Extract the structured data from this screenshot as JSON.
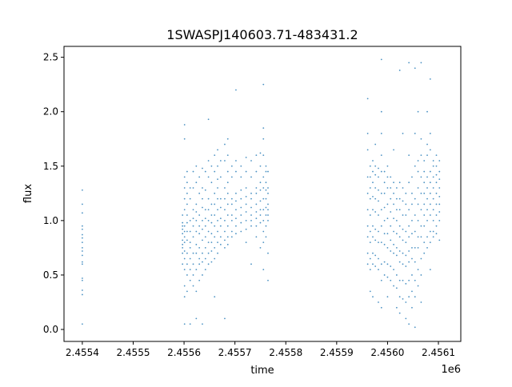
{
  "chart_data": {
    "type": "scatter",
    "title": "1SWASPJ140603.71-483431.2",
    "xlabel": "time",
    "ylabel": "flux",
    "x_offset_label": "1e6",
    "xlim": [
      2455364,
      2456144
    ],
    "ylim": [
      -0.11,
      2.6
    ],
    "xticks": [
      2455400,
      2455500,
      2455600,
      2455700,
      2455800,
      2455900,
      2456000,
      2456100
    ],
    "xtick_labels": [
      "2.4554",
      "2.4555",
      "2.4556",
      "2.4557",
      "2.4558",
      "2.4559",
      "2.4560",
      "2.4561"
    ],
    "yticks": [
      0.0,
      0.5,
      1.0,
      1.5,
      2.0,
      2.5
    ],
    "ytick_labels": [
      "0.0",
      "0.5",
      "1.0",
      "1.5",
      "2.0",
      "2.5"
    ],
    "grid": false,
    "marker_color": "#1f77b4",
    "nights": [
      {
        "t": 2455400,
        "flux": [
          1.28,
          1.15,
          1.07,
          0.95,
          0.92,
          0.87,
          0.84,
          0.8,
          0.75,
          0.72,
          0.68,
          0.62,
          0.6,
          0.47,
          0.45,
          0.36,
          0.32,
          0.05
        ]
      },
      {
        "t": 2455597,
        "flux": [
          0.82,
          0.95,
          0.7,
          1.05,
          0.78,
          0.88,
          0.6,
          0.92,
          0.75,
          0.98
        ]
      },
      {
        "t": 2455601,
        "flux": [
          0.85,
          1.2,
          0.65,
          1.4,
          0.55,
          0.95,
          1.75,
          0.4,
          1.1,
          0.8,
          0.3,
          1.88,
          0.72,
          1.3,
          0.05,
          0.9
        ]
      },
      {
        "t": 2455606,
        "flux": [
          0.9,
          1.25,
          0.7,
          1.45,
          0.6,
          1.05,
          0.5,
          0.82,
          1.15,
          0.35,
          0.98,
          1.35
        ]
      },
      {
        "t": 2455612,
        "flux": [
          0.8,
          1.0,
          0.65,
          1.2,
          0.55,
          0.9,
          0.45,
          1.3,
          0.75,
          0.05
        ]
      },
      {
        "t": 2455618,
        "flux": [
          0.85,
          1.1,
          0.6,
          1.3,
          0.5,
          0.95,
          0.7,
          1.45,
          0.4,
          1.02
        ]
      },
      {
        "t": 2455624,
        "flux": [
          0.9,
          1.15,
          0.7,
          1.35,
          0.55,
          1.0,
          0.78,
          1.5,
          0.35,
          0.1,
          1.08
        ]
      },
      {
        "t": 2455630,
        "flux": [
          0.88,
          1.05,
          0.65,
          1.25,
          0.6,
          0.95,
          0.75,
          1.4,
          0.45
        ]
      },
      {
        "t": 2455636,
        "flux": [
          0.92,
          1.12,
          0.7,
          1.3,
          0.62,
          1.0,
          0.82,
          1.48,
          0.5,
          1.2,
          0.05
        ]
      },
      {
        "t": 2455642,
        "flux": [
          0.95,
          1.1,
          0.75,
          1.28,
          0.65,
          1.02,
          0.85,
          1.45,
          0.55
        ]
      },
      {
        "t": 2455648,
        "flux": [
          1.0,
          1.2,
          0.8,
          1.4,
          0.7,
          1.1,
          0.9,
          1.55,
          0.6,
          1.93
        ]
      },
      {
        "t": 2455654,
        "flux": [
          0.98,
          1.15,
          0.8,
          1.35,
          0.72,
          1.05,
          0.88,
          1.5,
          0.62
        ]
      },
      {
        "t": 2455660,
        "flux": [
          1.05,
          1.25,
          0.85,
          1.45,
          0.75,
          1.15,
          0.95,
          1.6,
          0.65,
          0.3
        ]
      },
      {
        "t": 2455666,
        "flux": [
          1.1,
          1.3,
          0.9,
          1.5,
          0.8,
          1.2,
          1.0,
          1.65,
          0.7,
          1.38
        ]
      },
      {
        "t": 2455672,
        "flux": [
          1.02,
          1.2,
          0.85,
          1.4,
          0.78,
          1.12,
          0.95,
          1.55
        ]
      },
      {
        "t": 2455680,
        "flux": [
          1.1,
          1.3,
          0.9,
          1.55,
          0.82,
          1.2,
          1.0,
          1.7,
          0.75,
          0.1
        ]
      },
      {
        "t": 2455686,
        "flux": [
          1.15,
          1.35,
          0.95,
          1.6,
          0.85,
          1.25,
          1.05,
          1.75,
          0.78,
          1.45
        ]
      },
      {
        "t": 2455694,
        "flux": [
          1.05,
          1.2,
          0.9,
          1.4,
          0.85,
          1.15,
          1.0,
          1.5
        ]
      },
      {
        "t": 2455702,
        "flux": [
          1.1,
          1.25,
          0.95,
          1.45,
          0.88,
          1.18,
          1.02,
          1.55,
          2.2
        ]
      },
      {
        "t": 2455712,
        "flux": [
          1.12,
          1.28,
          0.98,
          1.4,
          0.9,
          1.2,
          1.05,
          1.5
        ]
      },
      {
        "t": 2455722,
        "flux": [
          1.15,
          1.3,
          1.0,
          1.45,
          0.92,
          1.22,
          1.08,
          1.58,
          0.8
        ]
      },
      {
        "t": 2455732,
        "flux": [
          1.12,
          1.25,
          1.0,
          1.4,
          0.95,
          1.2,
          1.05,
          1.55,
          0.6
        ]
      },
      {
        "t": 2455742,
        "flux": [
          1.15,
          1.3,
          1.02,
          1.45,
          0.95,
          1.25,
          1.08,
          1.6,
          0.85
        ]
      },
      {
        "t": 2455750,
        "flux": [
          1.18,
          1.35,
          1.05,
          1.5,
          0.98,
          1.28,
          1.1,
          1.62,
          0.75
        ]
      },
      {
        "t": 2455756,
        "flux": [
          1.2,
          1.4,
          1.0,
          1.6,
          0.9,
          1.3,
          1.1,
          1.75,
          0.8,
          2.25,
          1.85,
          0.55
        ]
      },
      {
        "t": 2455761,
        "flux": [
          1.2,
          1.35,
          1.05,
          1.5,
          0.95,
          1.28,
          1.12,
          1.45,
          0.85
        ]
      },
      {
        "t": 2455765,
        "flux": [
          1.15,
          1.3,
          1.05,
          1.45,
          1.0,
          1.25,
          1.1,
          0.7,
          0.45
        ]
      },
      {
        "t": 2455961,
        "flux": [
          1.1,
          1.4,
          0.85,
          1.65,
          0.7,
          1.25,
          0.95,
          1.8,
          0.6,
          2.12
        ]
      },
      {
        "t": 2455966,
        "flux": [
          1.05,
          1.3,
          0.8,
          1.5,
          0.65,
          1.2,
          0.9,
          1.4,
          0.55,
          0.35
        ]
      },
      {
        "t": 2455971,
        "flux": [
          1.1,
          1.35,
          0.85,
          1.55,
          0.7,
          1.22,
          0.95,
          1.45,
          0.6,
          0.3
        ]
      },
      {
        "t": 2455976,
        "flux": [
          1.08,
          1.3,
          0.82,
          1.5,
          0.68,
          1.2,
          0.92,
          1.42,
          0.58,
          1.7
        ]
      },
      {
        "t": 2455982,
        "flux": [
          1.05,
          1.28,
          0.8,
          1.48,
          0.65,
          1.18,
          0.9,
          1.4,
          0.55,
          0.25
        ]
      },
      {
        "t": 2455988,
        "flux": [
          1.1,
          1.45,
          0.8,
          1.8,
          0.6,
          1.25,
          0.95,
          2.0,
          0.45,
          2.48,
          0.2,
          1.6
        ]
      },
      {
        "t": 2455994,
        "flux": [
          1.0,
          1.25,
          0.78,
          1.45,
          0.62,
          1.12,
          0.88,
          1.35,
          0.5
        ]
      },
      {
        "t": 2456000,
        "flux": [
          1.02,
          1.3,
          0.75,
          1.5,
          0.6,
          1.15,
          0.88,
          1.4,
          0.48,
          0.3
        ]
      },
      {
        "t": 2456006,
        "flux": [
          0.95,
          1.2,
          0.72,
          1.4,
          0.58,
          1.08,
          0.82,
          1.3,
          0.45
        ]
      },
      {
        "t": 2456012,
        "flux": [
          0.9,
          1.15,
          0.7,
          1.35,
          0.55,
          1.02,
          0.78,
          1.25,
          0.4,
          1.65
        ]
      },
      {
        "t": 2456018,
        "flux": [
          0.88,
          1.1,
          0.68,
          1.3,
          0.5,
          1.0,
          0.75,
          1.2,
          0.38,
          0.2
        ]
      },
      {
        "t": 2456024,
        "flux": [
          0.85,
          1.1,
          0.62,
          1.35,
          0.45,
          0.95,
          0.72,
          1.2,
          0.3,
          2.38,
          0.15
        ]
      },
      {
        "t": 2456030,
        "flux": [
          0.82,
          1.05,
          0.6,
          1.3,
          0.45,
          0.92,
          0.7,
          1.18,
          0.28,
          1.8
        ]
      },
      {
        "t": 2456036,
        "flux": [
          0.8,
          1.05,
          0.58,
          1.25,
          0.42,
          0.9,
          0.68,
          1.15,
          0.25,
          0.1
        ]
      },
      {
        "t": 2456042,
        "flux": [
          0.85,
          1.1,
          0.62,
          1.35,
          0.45,
          0.95,
          0.72,
          1.6,
          0.3,
          2.45,
          0.05
        ]
      },
      {
        "t": 2456048,
        "flux": [
          0.88,
          1.15,
          0.65,
          1.4,
          0.5,
          1.0,
          0.75,
          1.25,
          0.35,
          0.2
        ]
      },
      {
        "t": 2456054,
        "flux": [
          0.9,
          1.2,
          0.62,
          1.5,
          0.45,
          1.05,
          0.75,
          1.8,
          0.3,
          2.4,
          0.02
        ]
      },
      {
        "t": 2456060,
        "flux": [
          1.0,
          1.3,
          0.75,
          1.55,
          0.55,
          1.15,
          0.85,
          1.45,
          0.4,
          2.0
        ]
      },
      {
        "t": 2456066,
        "flux": [
          1.1,
          1.4,
          0.85,
          1.6,
          0.65,
          1.25,
          0.95,
          1.75,
          0.5,
          2.45,
          0.25
        ]
      },
      {
        "t": 2456072,
        "flux": [
          1.15,
          1.35,
          0.95,
          1.55,
          0.8,
          1.25,
          1.05,
          1.45,
          0.7
        ]
      },
      {
        "t": 2456078,
        "flux": [
          1.2,
          1.4,
          1.0,
          1.6,
          0.85,
          1.3,
          1.1,
          1.7,
          0.75,
          2.0
        ]
      },
      {
        "t": 2456084,
        "flux": [
          1.25,
          1.45,
          1.05,
          1.65,
          0.9,
          1.35,
          1.15,
          1.8,
          0.8,
          2.3,
          0.55
        ]
      },
      {
        "t": 2456090,
        "flux": [
          1.2,
          1.4,
          1.0,
          1.55,
          0.9,
          1.3,
          1.1,
          1.5,
          0.85
        ]
      },
      {
        "t": 2456096,
        "flux": [
          1.25,
          1.42,
          1.05,
          1.6,
          0.95,
          1.35,
          1.15,
          1.5,
          0.88
        ]
      },
      {
        "t": 2456102,
        "flux": [
          1.22,
          1.38,
          1.08,
          1.55,
          1.0,
          1.3,
          1.15,
          1.45,
          0.82
        ]
      }
    ]
  }
}
